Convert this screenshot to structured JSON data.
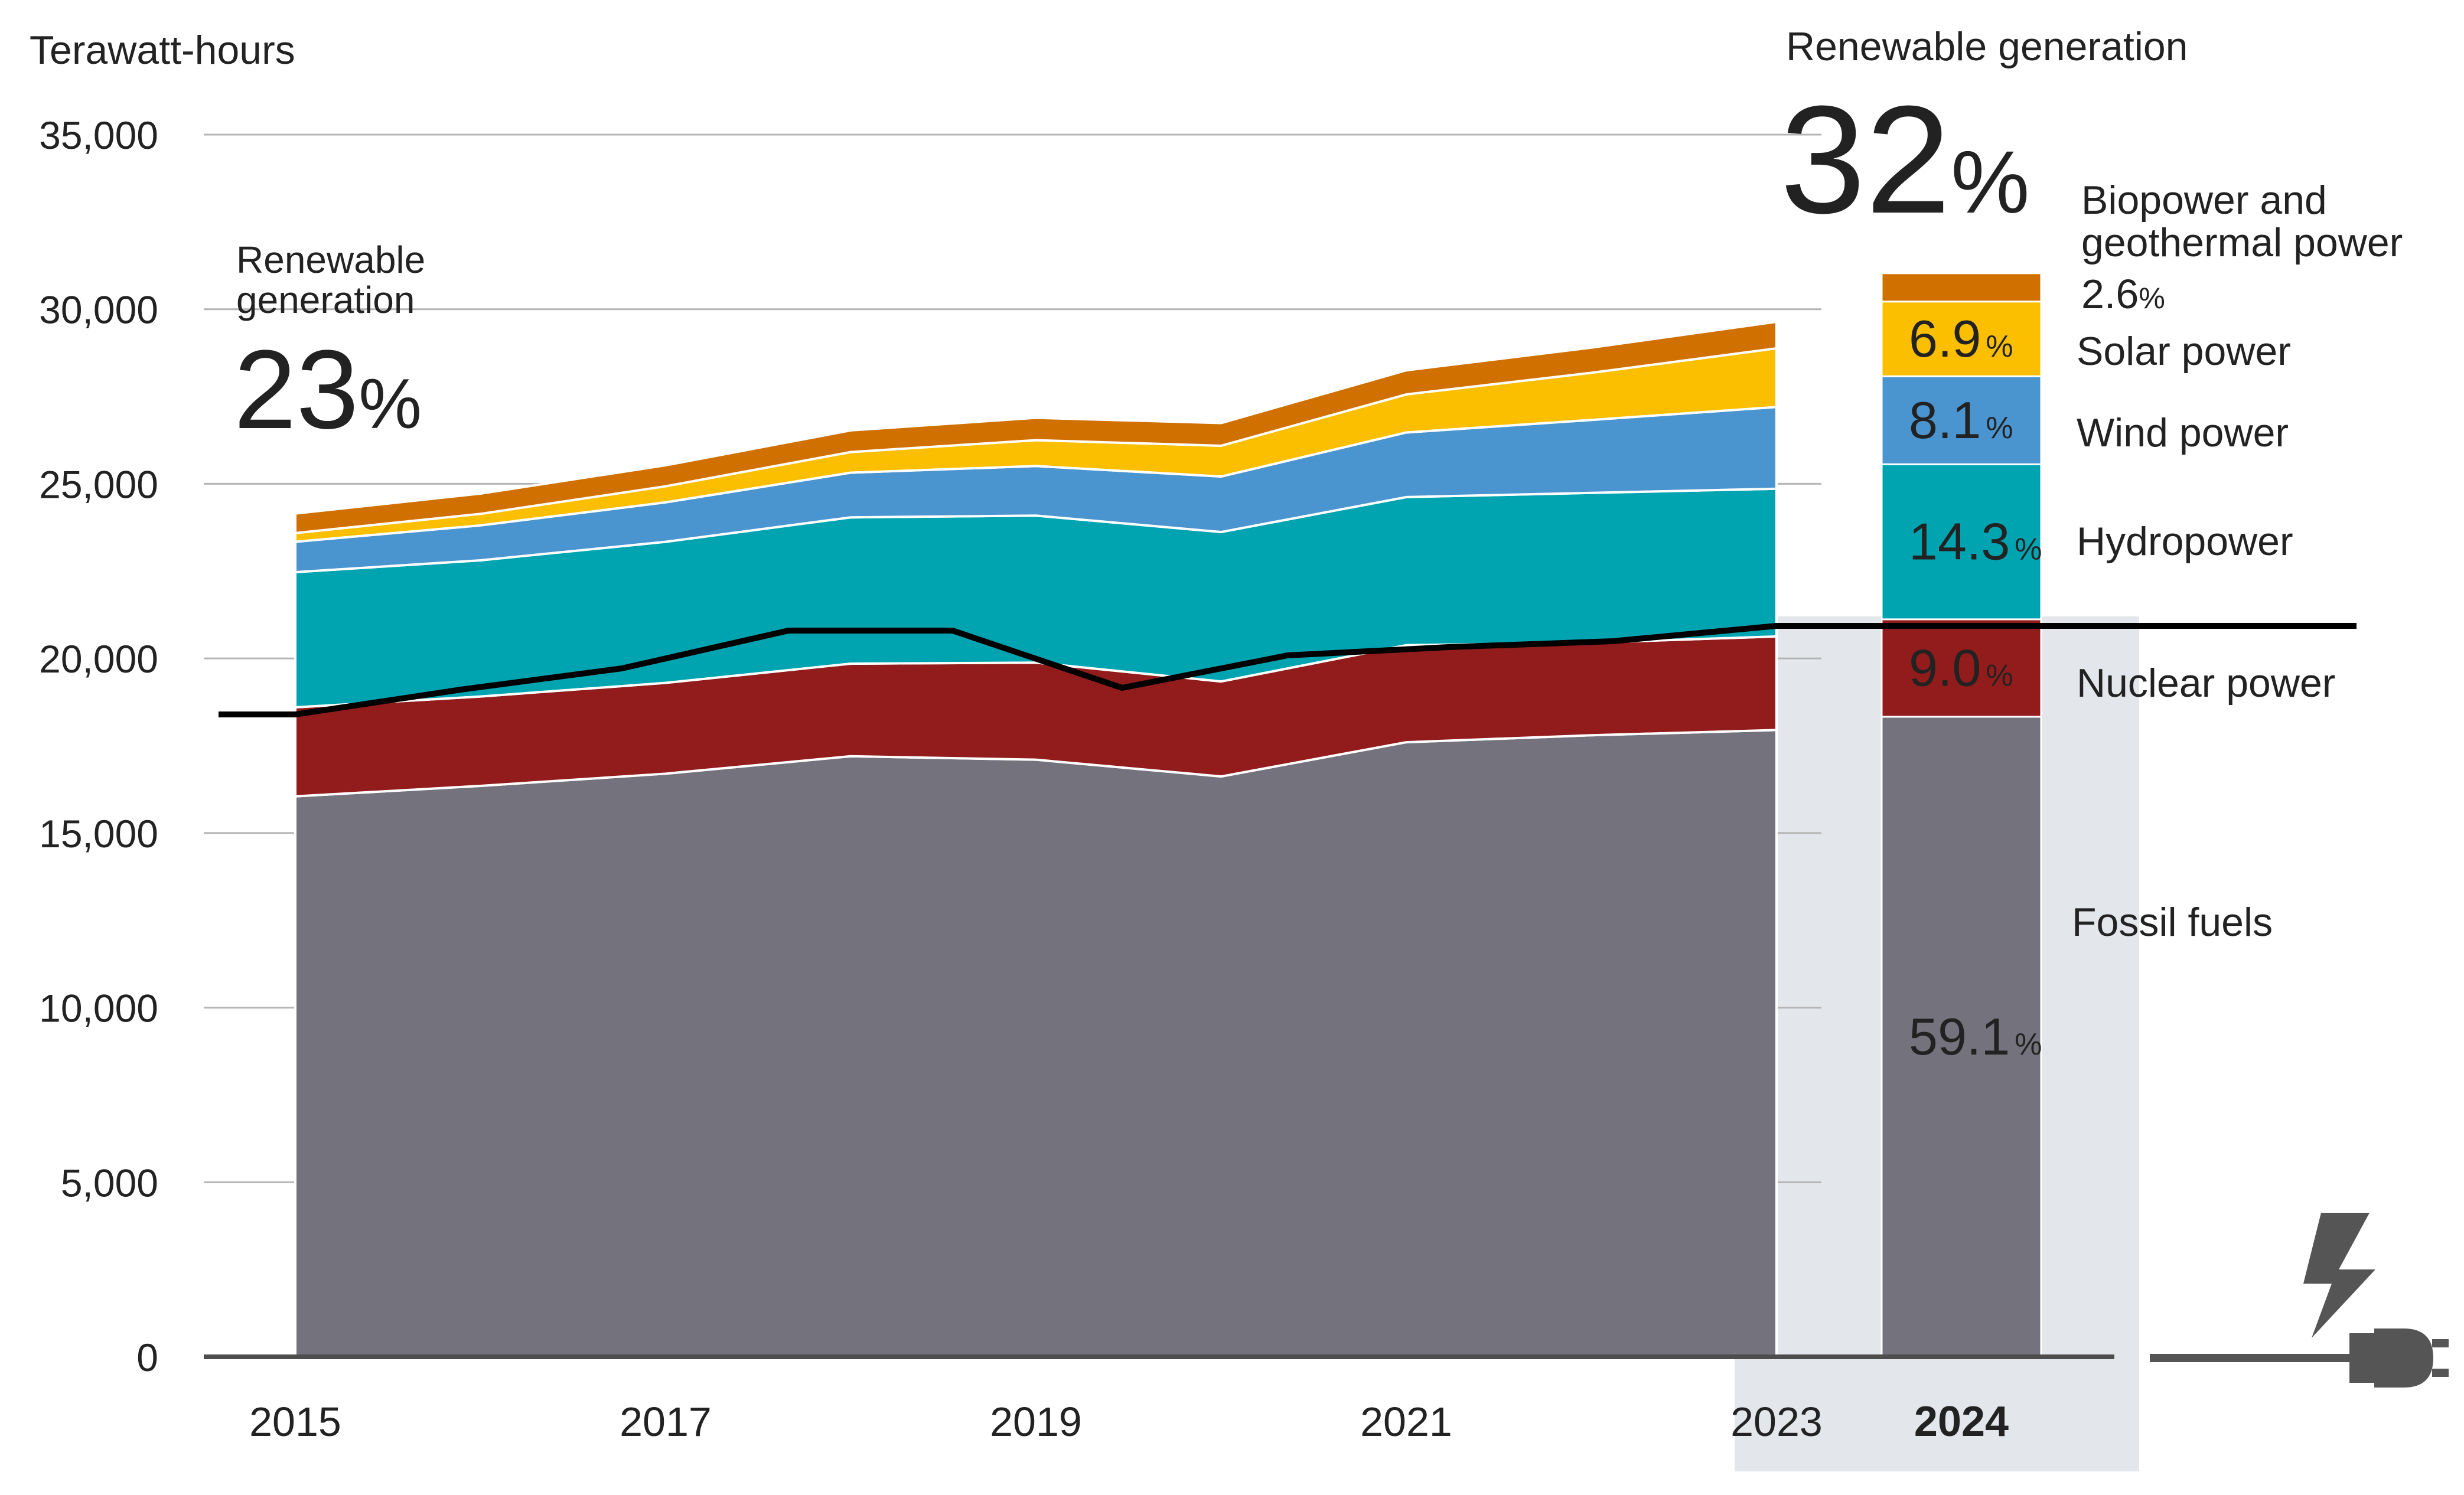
{
  "chart_data": {
    "type": "area",
    "unit_label": "Terawatt-hours",
    "ylim": [
      0,
      35000
    ],
    "y_ticks": [
      0,
      5000,
      10000,
      15000,
      20000,
      25000,
      30000,
      35000
    ],
    "y_tick_labels": [
      "0",
      "5,000",
      "10,000",
      "15,000",
      "20,000",
      "25,000",
      "30,000",
      "35,000"
    ],
    "x": [
      2015,
      2016,
      2017,
      2018,
      2019,
      2020,
      2021,
      2022,
      2023,
      2024
    ],
    "x_tick_labels": [
      "2015",
      "2017",
      "2019",
      "2021",
      "2023"
    ],
    "x_ticks": [
      2015,
      2017,
      2019,
      2021,
      2023
    ],
    "highlight_year_label": "2024",
    "series": [
      {
        "name": "Fossil fuels",
        "color": "#74737d",
        "values": [
          16050,
          16350,
          16700,
          17200,
          17100,
          16620,
          17600,
          17800,
          17950,
          18330
        ]
      },
      {
        "name": "Nuclear power",
        "color": "#921c1b",
        "values": [
          2550,
          2560,
          2600,
          2650,
          2780,
          2720,
          2780,
          2650,
          2680,
          2790
        ]
      },
      {
        "name": "Hydropower",
        "color": "#00a4b0",
        "values": [
          3870,
          3900,
          4040,
          4190,
          4210,
          4280,
          4240,
          4290,
          4230,
          4440
        ]
      },
      {
        "name": "Wind power",
        "color": "#4a95d0",
        "values": [
          870,
          1000,
          1130,
          1280,
          1420,
          1590,
          1850,
          2090,
          2340,
          2520
        ]
      },
      {
        "name": "Solar power",
        "color": "#fbbf00",
        "values": [
          250,
          330,
          460,
          590,
          740,
          880,
          1090,
          1350,
          1680,
          2140
        ]
      },
      {
        "name": "Biopower and geothermal power",
        "color": "#d07000",
        "values": [
          560,
          580,
          600,
          620,
          640,
          650,
          690,
          720,
          760,
          810
        ]
      }
    ],
    "threshold_line": {
      "description": "Renewable generation boundary",
      "values": [
        18600,
        18600,
        18900,
        19300,
        19850,
        19850,
        19300,
        20350,
        20450,
        20650,
        21120,
        21120
      ]
    },
    "callouts": [
      {
        "label": "Renewable generation",
        "value": "23",
        "unit": "%",
        "year": 2015
      },
      {
        "label": "Renewable generation",
        "value": "32",
        "unit": "%",
        "year": 2024
      }
    ],
    "bar_2024": [
      {
        "name": "Fossil fuels",
        "percent": "59.1",
        "label_color": "#ffffff"
      },
      {
        "name": "Nuclear power",
        "percent": "9.0",
        "label_color": "#ffffff"
      },
      {
        "name": "Hydropower",
        "percent": "14.3",
        "label_color": "#ffffff"
      },
      {
        "name": "Wind power",
        "percent": "8.1",
        "label_color": "#ffffff"
      },
      {
        "name": "Solar power",
        "percent": "6.9",
        "label_color": "#111111"
      },
      {
        "name": "Biopower and geothermal power",
        "percent": "2.6",
        "label_color": "#111111"
      }
    ],
    "legend_labels": {
      "bio_line1": "Biopower and",
      "bio_line2": "geothermal power",
      "bio_percent": "2.6",
      "solar": "Solar power",
      "wind": "Wind power",
      "hydro": "Hydropower",
      "nuclear": "Nuclear power",
      "fossil": "Fossil fuels"
    },
    "percent_sign": "%",
    "left_callout_line1": "Renewable",
    "left_callout_line2": "generation",
    "right_callout_label": "Renewable generation",
    "icons": [
      "lightning-bolt-icon",
      "plug-icon"
    ],
    "colors": {
      "gridline": "#b4b4b4",
      "axis": "#4d4d4d",
      "highlight_band": "#e3e6ea",
      "threshold": "#000000"
    }
  }
}
